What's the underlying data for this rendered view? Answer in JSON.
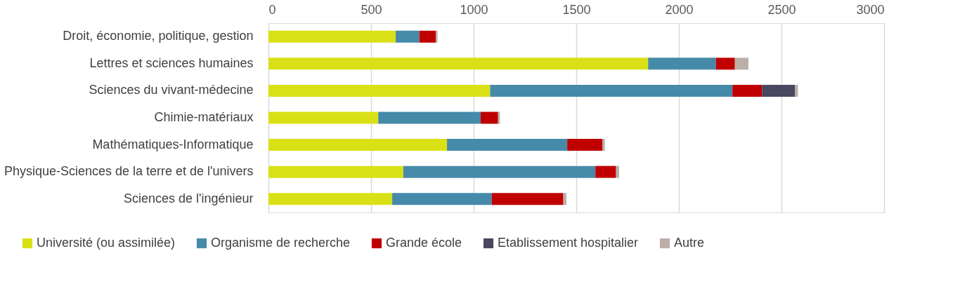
{
  "chart_data": {
    "type": "bar",
    "orientation": "horizontal",
    "stacked": true,
    "categories": [
      "Droit, économie, politique, gestion",
      "Lettres et sciences humaines",
      "Sciences du vivant-médecine",
      "Chimie-matériaux",
      "Mathématiques-Informatique",
      "Physique-Sciences de la terre et de l'univers",
      "Sciences de l'ingénieur"
    ],
    "series": [
      {
        "name": "Université (ou assimilée)",
        "color": "#d9e116",
        "values": [
          620,
          1850,
          1080,
          535,
          870,
          657,
          603
        ]
      },
      {
        "name": "Organisme de recherche",
        "color": "#468aaa",
        "values": [
          115,
          330,
          1181,
          499,
          586,
          936,
          485
        ]
      },
      {
        "name": "Grande école",
        "color": "#c00000",
        "values": [
          80,
          93,
          144,
          85,
          172,
          101,
          349
        ]
      },
      {
        "name": "Etablissement hospitalier",
        "color": "#4a4760",
        "values": [
          0,
          0,
          160,
          0,
          0,
          0,
          0
        ]
      },
      {
        "name": "Autre",
        "color": "#bcafaa",
        "values": [
          9,
          66,
          15,
          9,
          11,
          15,
          15
        ]
      }
    ],
    "xlim": [
      0,
      3000
    ],
    "xticks": [
      0,
      500,
      1000,
      1500,
      2000,
      2500,
      3000
    ],
    "grid": "x",
    "legend": "bottom"
  }
}
